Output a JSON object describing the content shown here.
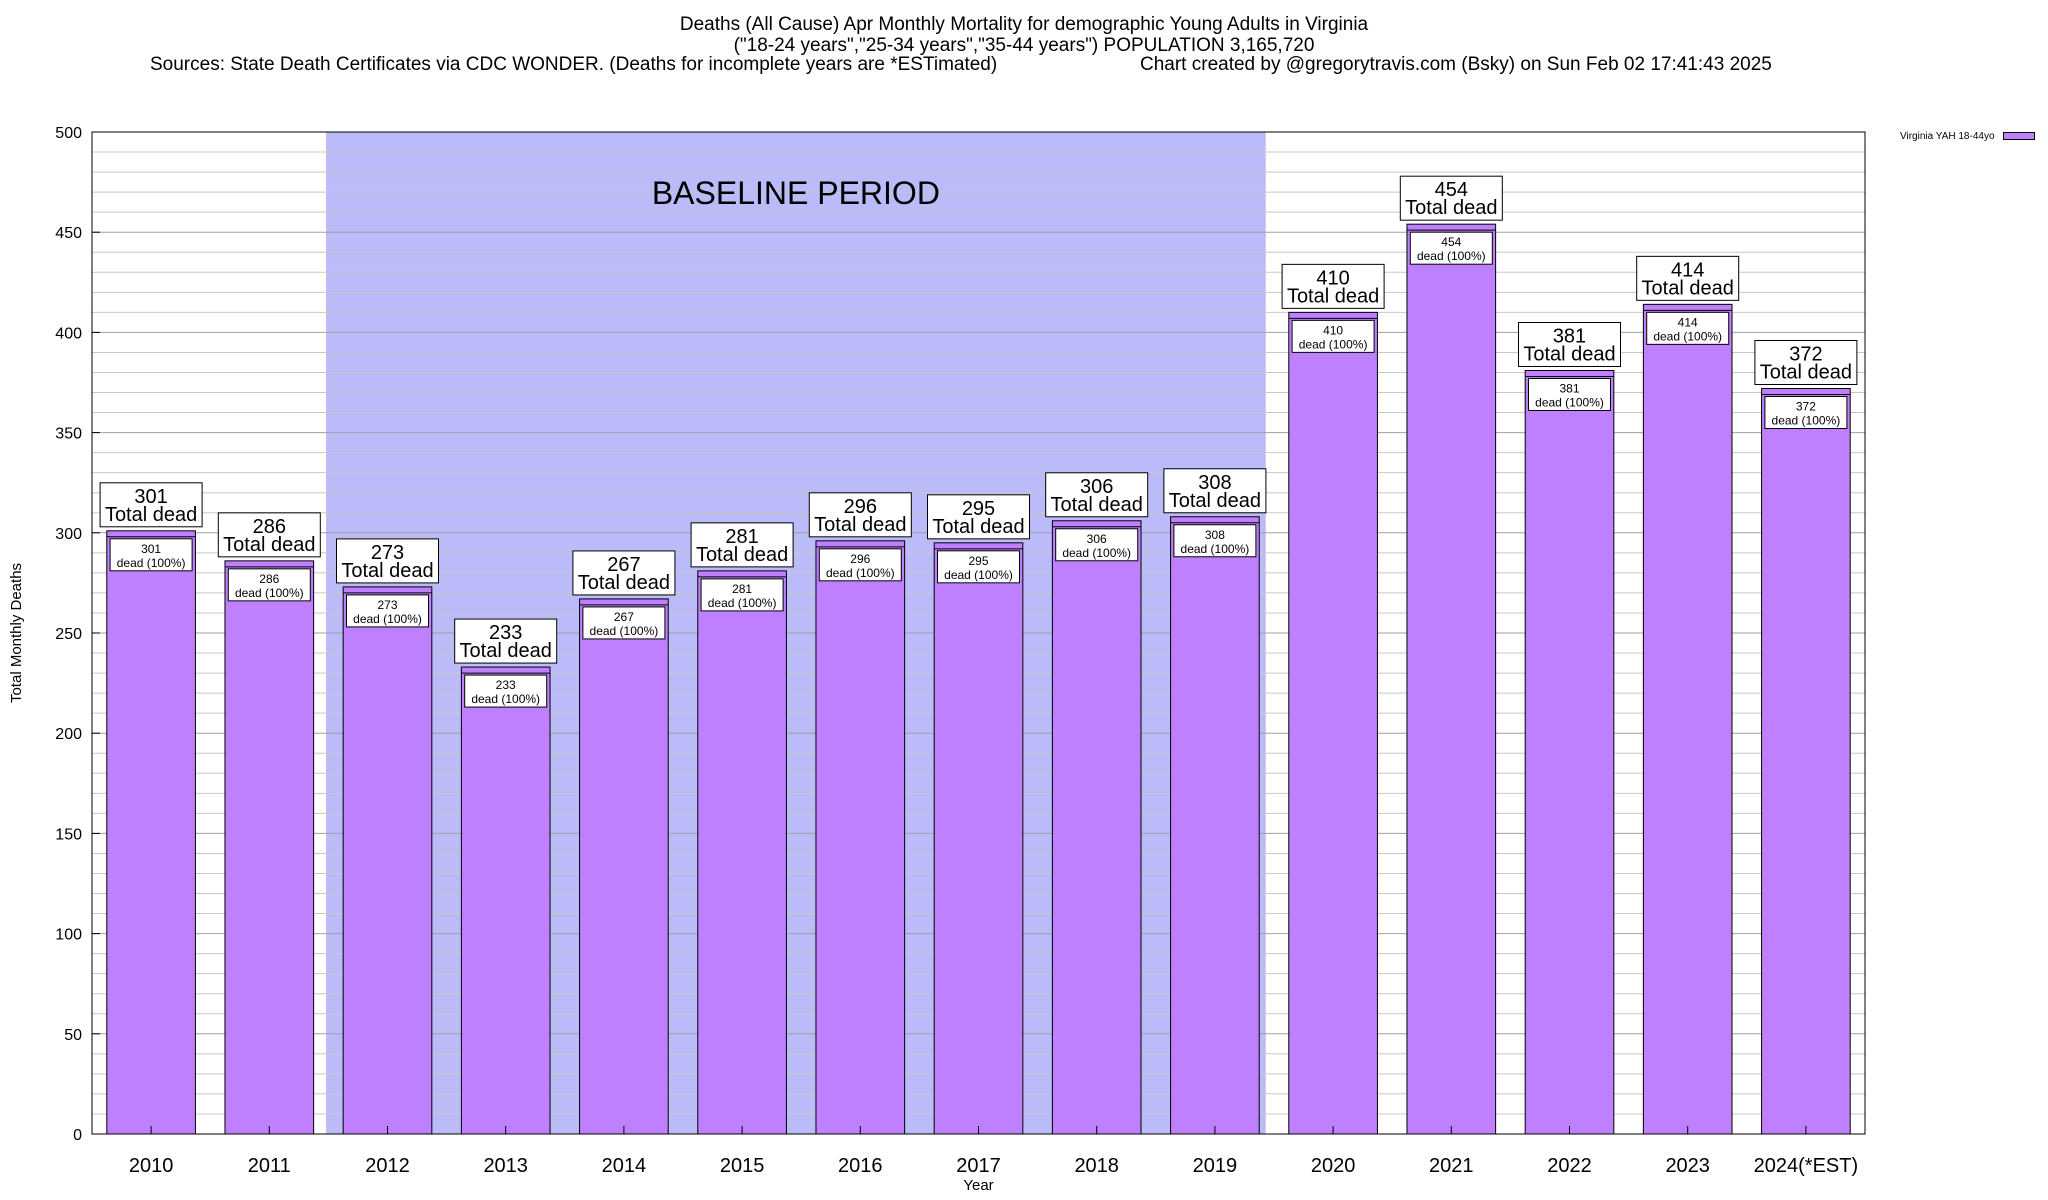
{
  "chart_data": {
    "type": "bar",
    "title": "Deaths (All Cause) Apr Monthly Mortality for demographic Young Adults in Virginia",
    "subtitle": "(\"18-24 years\",\"25-34 years\",\"35-44 years\") POPULATION 3,165,720",
    "sources": "Sources: State Death Certificates via CDC WONDER. (Deaths for incomplete years are *ESTimated)",
    "credit": "Chart created by @gregorytravis.com (Bsky) on Sun Feb 02 17:41:43 2025",
    "xlabel": "Year",
    "ylabel": "Total Monthly Deaths",
    "ylim": [
      0,
      500
    ],
    "yticks": [
      0,
      50,
      100,
      150,
      200,
      250,
      300,
      350,
      400,
      450,
      500
    ],
    "grid": true,
    "categories": [
      "2010",
      "2011",
      "2012",
      "2013",
      "2014",
      "2015",
      "2016",
      "2017",
      "2018",
      "2019",
      "2020",
      "2021",
      "2022",
      "2023",
      "2024(*EST)"
    ],
    "series": [
      {
        "name": "Virginia YAH 18-44yo",
        "color": "#bf80ff",
        "values": [
          301,
          286,
          273,
          233,
          267,
          281,
          296,
          295,
          306,
          308,
          410,
          454,
          381,
          414,
          372
        ]
      }
    ],
    "top_label_suffix": "Total dead",
    "inner_label_suffix": "dead (100%)",
    "baseline_period": {
      "label": "BASELINE PERIOD",
      "from": "2012",
      "to": "2019",
      "color": "#bbbbf9"
    },
    "legend_position": "top-right"
  }
}
